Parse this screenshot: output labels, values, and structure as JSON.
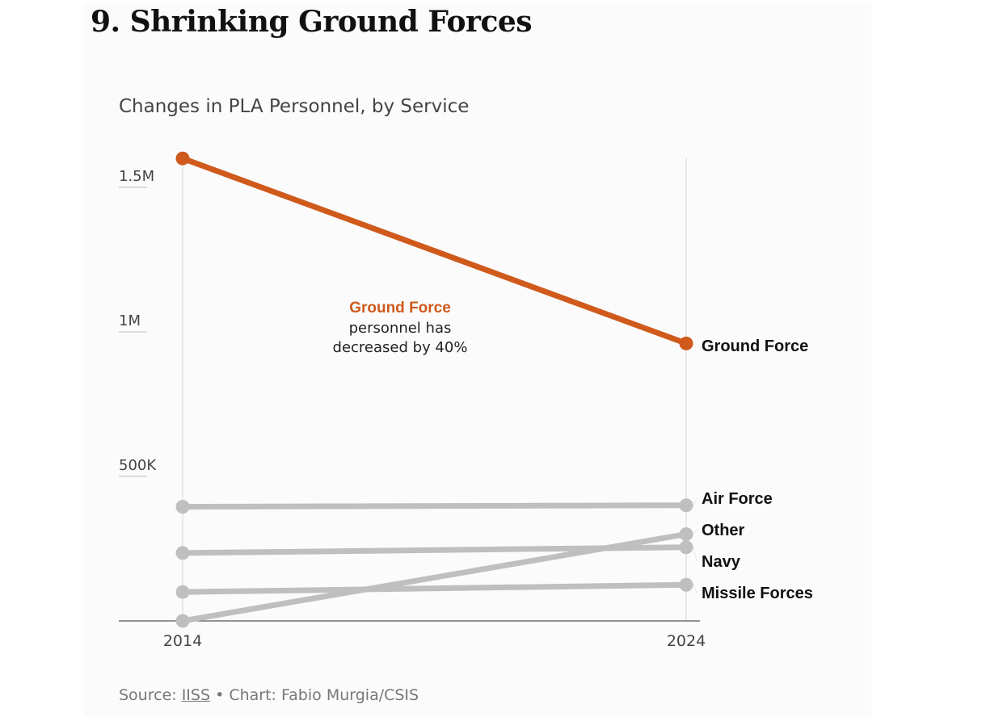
{
  "header": {
    "title": "9. Shrinking Ground Forces",
    "subtitle": "Changes in PLA Personnel, by Service"
  },
  "footer": {
    "source_prefix": "Source: ",
    "source_link": "IISS",
    "separator": " • ",
    "credit": "Chart: Fabio Murgia/CSIS"
  },
  "colors": {
    "highlight": "#cf5a1c",
    "muted": "#bfbfbf",
    "axis": "#555555",
    "grid": "#e3e3e3"
  },
  "annotation": {
    "title": "Ground Force",
    "line1": "personnel has",
    "line2": "decreased by 40%"
  },
  "chart_data": {
    "type": "line",
    "title": "Changes in PLA Personnel, by Service",
    "xlabel": "",
    "ylabel": "",
    "x": [
      "2014",
      "2024"
    ],
    "ylim": [
      0,
      1600000
    ],
    "yticks": [
      {
        "value": 500000,
        "label": "500K"
      },
      {
        "value": 1000000,
        "label": "1M"
      },
      {
        "value": 1500000,
        "label": "1.5M"
      }
    ],
    "grid": false,
    "legend": "direct-labels-right",
    "series": [
      {
        "name": "Ground Force",
        "values": [
          1600000,
          960000
        ],
        "highlight": true
      },
      {
        "name": "Air Force",
        "values": [
          395000,
          400000
        ],
        "highlight": false
      },
      {
        "name": "Other",
        "values": [
          0,
          300000
        ],
        "highlight": false
      },
      {
        "name": "Navy",
        "values": [
          235000,
          255000
        ],
        "highlight": false
      },
      {
        "name": "Missile Forces",
        "values": [
          100000,
          125000
        ],
        "highlight": false
      }
    ]
  }
}
